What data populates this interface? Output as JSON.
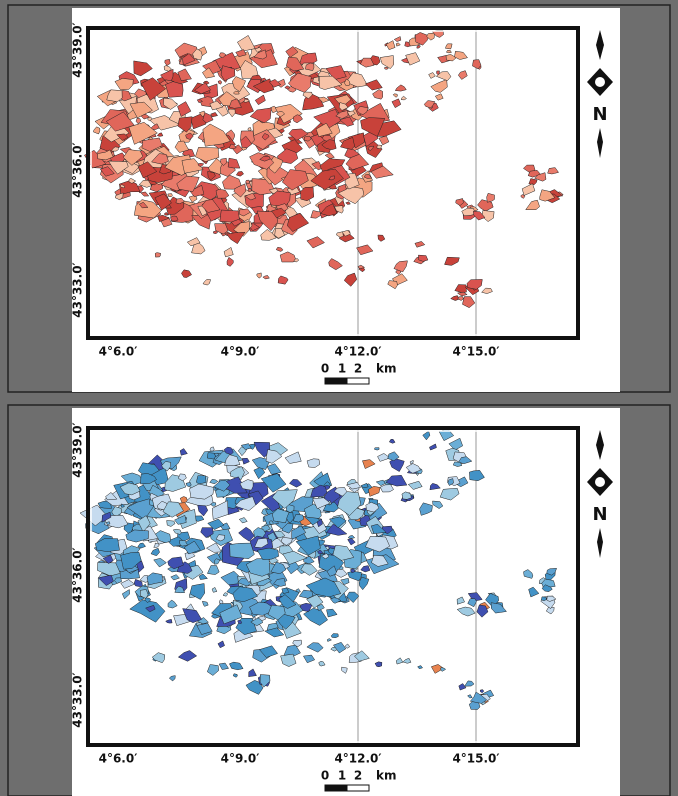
{
  "panels": [
    {
      "latitude_labels": [
        "43°39.0′",
        "43°36.0′",
        "43°33.0′"
      ],
      "longitude_labels": [
        "4°6.0′",
        "4°9.0′",
        "4°12.0′",
        "4°15.0′"
      ],
      "scale_bar": [
        "0",
        "1",
        "2",
        "km"
      ],
      "north_arrow": "N"
    },
    {
      "latitude_labels": [
        "43°39.0′",
        "43°36.0′",
        "43°33.0′"
      ],
      "longitude_labels": [
        "4°6.0′",
        "4°9.0′",
        "4°12.0′",
        "4°15.0′"
      ],
      "scale_bar": [
        "0",
        "1",
        "2",
        "km"
      ],
      "north_arrow": "N"
    }
  ]
}
